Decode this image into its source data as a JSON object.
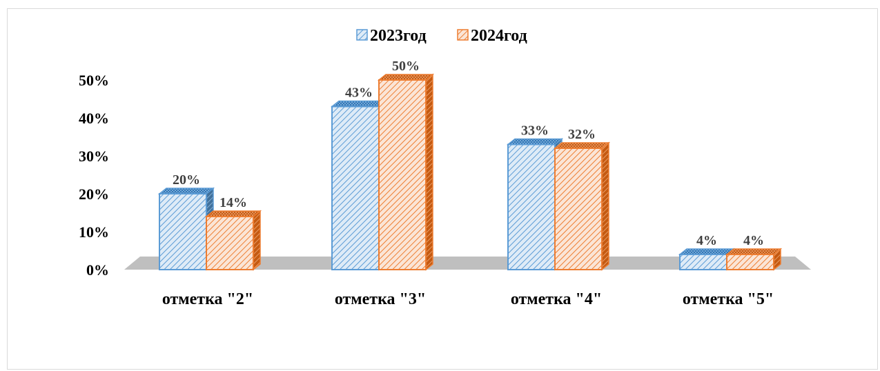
{
  "chart_data": {
    "type": "bar",
    "categories": [
      "отметка \"2\"",
      "отметка \"3\"",
      "отметка \"4\"",
      "отметка \"5\""
    ],
    "series": [
      {
        "name": "2023год",
        "values": [
          20,
          43,
          33,
          4
        ],
        "color": "#5b9bd5",
        "value_labels": [
          "20%",
          "43%",
          "33%",
          "4%"
        ]
      },
      {
        "name": "2024год",
        "values": [
          14,
          50,
          32,
          4
        ],
        "color": "#ed7d31",
        "value_labels": [
          "14%",
          "50%",
          "32%",
          "4%"
        ]
      }
    ],
    "yticks": [
      "0%",
      "10%",
      "20%",
      "30%",
      "40%",
      "50%"
    ],
    "ylim": [
      0,
      50
    ],
    "legend_position": "top",
    "style": "3d-clustered-column, hatched fill",
    "floor_color": "#bfbfbf",
    "grid": false
  }
}
